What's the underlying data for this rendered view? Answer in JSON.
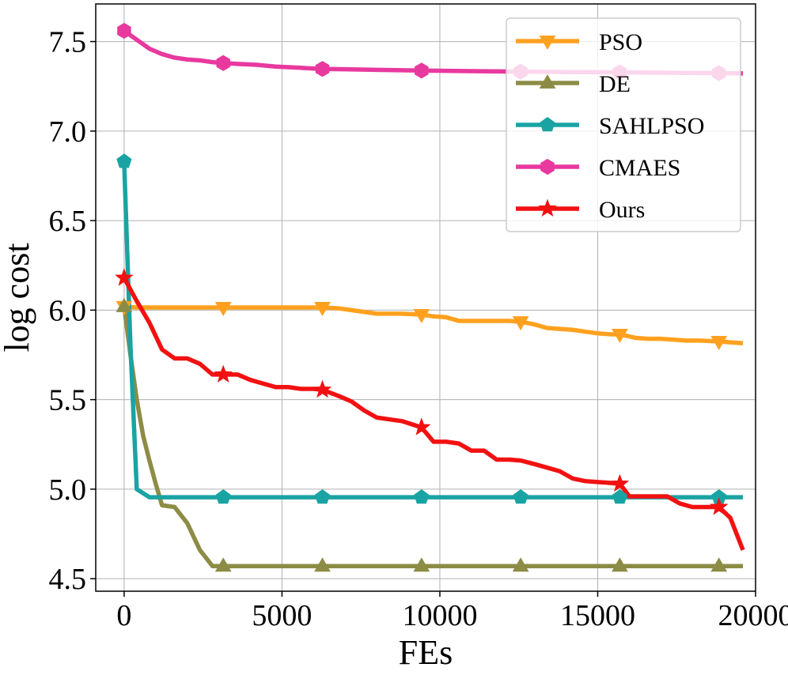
{
  "chart_data": {
    "type": "line",
    "title": "",
    "xlabel": "FEs",
    "ylabel": "log cost",
    "xlim": [
      -900,
      20000
    ],
    "ylim": [
      4.43,
      7.71
    ],
    "xticks": [
      0,
      5000,
      10000,
      15000,
      20000
    ],
    "xtick_labels": [
      "0",
      "5000",
      "10000",
      "15000",
      "20000"
    ],
    "yticks": [
      4.5,
      5.0,
      5.5,
      6.0,
      6.5,
      7.0,
      7.5
    ],
    "ytick_labels": [
      "4.5",
      "5.0",
      "5.5",
      "6.0",
      "6.5",
      "7.0",
      "7.5"
    ],
    "grid": true,
    "legend_position": "top-right",
    "series": [
      {
        "name": "PSO",
        "color": "#FFA11F",
        "marker": "triangle-down",
        "x": [
          0,
          400,
          800,
          1200,
          1600,
          2000,
          2400,
          2800,
          3140,
          3600,
          4000,
          4400,
          4800,
          5200,
          5600,
          6000,
          6280,
          6800,
          7200,
          7600,
          8000,
          8400,
          8800,
          9420,
          9800,
          10200,
          10600,
          11000,
          11400,
          11800,
          12200,
          12560,
          13000,
          13400,
          13800,
          14200,
          14600,
          15000,
          15400,
          15700,
          16200,
          16600,
          17000,
          17400,
          17800,
          18200,
          18840,
          19200,
          19600
        ],
        "y": [
          6.02,
          6.015,
          6.015,
          6.015,
          6.015,
          6.015,
          6.015,
          6.015,
          6.015,
          6.015,
          6.015,
          6.015,
          6.015,
          6.015,
          6.015,
          6.015,
          6.015,
          6.01,
          6.0,
          5.99,
          5.98,
          5.98,
          5.98,
          5.975,
          5.965,
          5.96,
          5.94,
          5.94,
          5.94,
          5.94,
          5.94,
          5.935,
          5.92,
          5.9,
          5.895,
          5.89,
          5.88,
          5.87,
          5.865,
          5.865,
          5.845,
          5.84,
          5.84,
          5.835,
          5.83,
          5.83,
          5.825,
          5.82,
          5.815
        ],
        "marker_x": [
          0,
          3140,
          6280,
          9420,
          12560,
          15700,
          18840
        ]
      },
      {
        "name": "DE",
        "color": "#8C8C46",
        "marker": "triangle-up",
        "x": [
          0,
          200,
          400,
          600,
          800,
          1000,
          1200,
          1600,
          2000,
          2400,
          2800,
          3140,
          4000,
          5000,
          6280,
          8000,
          9420,
          11000,
          12560,
          14000,
          15700,
          17000,
          18840,
          19600
        ],
        "y": [
          6.02,
          5.75,
          5.5,
          5.3,
          5.16,
          5.03,
          4.91,
          4.9,
          4.81,
          4.66,
          4.57,
          4.57,
          4.57,
          4.57,
          4.57,
          4.57,
          4.57,
          4.57,
          4.57,
          4.57,
          4.57,
          4.57,
          4.57,
          4.57
        ],
        "marker_x": [
          0,
          3140,
          6280,
          9420,
          12560,
          15700,
          18840
        ]
      },
      {
        "name": "SAHLPSO",
        "color": "#1AA3A3",
        "marker": "pentagon",
        "x": [
          0,
          200,
          400,
          800,
          1200,
          2000,
          3140,
          4000,
          5000,
          6280,
          8000,
          9420,
          11000,
          12560,
          14000,
          15700,
          17000,
          18840,
          19600
        ],
        "y": [
          6.83,
          5.8,
          5.0,
          4.955,
          4.955,
          4.955,
          4.955,
          4.955,
          4.955,
          4.955,
          4.955,
          4.955,
          4.955,
          4.955,
          4.955,
          4.955,
          4.955,
          4.955,
          4.955
        ],
        "marker_x": [
          0,
          3140,
          6280,
          9420,
          12560,
          15700,
          18840
        ]
      },
      {
        "name": "CMAES",
        "color": "#E8399F",
        "marker": "hexagon",
        "x": [
          0,
          400,
          800,
          1200,
          1600,
          2000,
          2400,
          2800,
          3140,
          3600,
          4200,
          4800,
          5400,
          6280,
          7000,
          8000,
          9420,
          11000,
          12560,
          14000,
          15700,
          17000,
          18840,
          19600
        ],
        "y": [
          7.56,
          7.51,
          7.46,
          7.43,
          7.41,
          7.4,
          7.395,
          7.385,
          7.38,
          7.375,
          7.37,
          7.36,
          7.355,
          7.347,
          7.345,
          7.342,
          7.338,
          7.335,
          7.332,
          7.33,
          7.328,
          7.326,
          7.324,
          7.322
        ],
        "marker_x": [
          0,
          3140,
          6280,
          9420,
          12560,
          15700,
          18840
        ]
      },
      {
        "name": "Ours",
        "color": "#F21111",
        "marker": "star",
        "x": [
          0,
          400,
          800,
          1200,
          1600,
          2000,
          2400,
          2800,
          3140,
          3600,
          4000,
          4400,
          4800,
          5200,
          5600,
          6000,
          6280,
          6800,
          7200,
          7600,
          8000,
          8400,
          8800,
          9420,
          9800,
          10200,
          10600,
          11000,
          11400,
          11800,
          12200,
          12560,
          13000,
          13400,
          13800,
          14200,
          14600,
          15000,
          15400,
          15700,
          16000,
          16400,
          16800,
          17200,
          17600,
          18000,
          18400,
          18840,
          19200,
          19600
        ],
        "y": [
          6.18,
          6.05,
          5.93,
          5.78,
          5.73,
          5.73,
          5.7,
          5.64,
          5.64,
          5.64,
          5.61,
          5.59,
          5.57,
          5.57,
          5.56,
          5.56,
          5.555,
          5.52,
          5.49,
          5.44,
          5.4,
          5.39,
          5.38,
          5.345,
          5.265,
          5.265,
          5.255,
          5.215,
          5.215,
          5.165,
          5.165,
          5.16,
          5.14,
          5.12,
          5.1,
          5.06,
          5.045,
          5.04,
          5.035,
          5.03,
          4.96,
          4.96,
          4.96,
          4.96,
          4.92,
          4.9,
          4.9,
          4.9,
          4.84,
          4.66
        ],
        "marker_x": [
          0,
          3140,
          6280,
          9420,
          15700,
          18840
        ]
      }
    ]
  }
}
